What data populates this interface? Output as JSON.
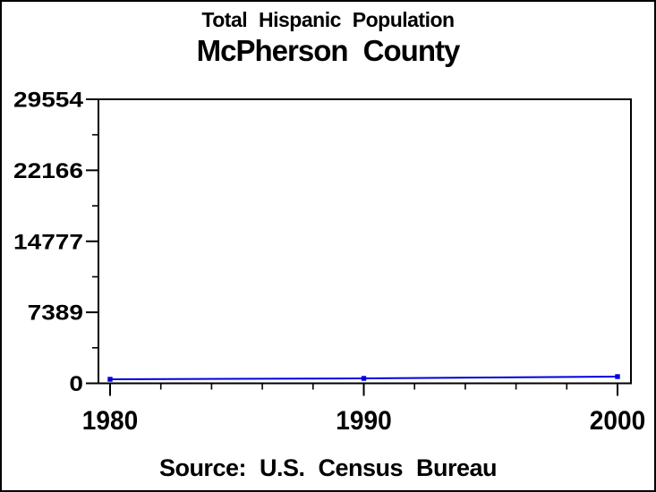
{
  "chart_data": {
    "type": "line",
    "title": "Total Hispanic Population",
    "subtitle": "McPherson County",
    "source_note": "Source: U.S. Census Bureau",
    "series": [
      {
        "name": "Total Hispanic Population",
        "x": [
          1980,
          1990,
          2000
        ],
        "values": [
          420,
          510,
          700
        ]
      }
    ],
    "xlim": [
      1980,
      2000
    ],
    "ylim": [
      0,
      29554
    ],
    "xticks": {
      "values": [
        1980,
        1990,
        2000
      ],
      "labels": [
        "1980",
        "1990",
        "2000"
      ],
      "minor_step_years": 2
    },
    "yticks": {
      "values": [
        0,
        7389,
        14777,
        22166,
        29554
      ],
      "labels": [
        "0",
        "7389",
        "14777",
        "22166",
        "29554"
      ],
      "minor": "midpoints"
    },
    "grid": false,
    "legend": "none",
    "frame": "full-box",
    "background": "#ffffff",
    "axis_color": "#000000",
    "text_color": "#000000",
    "line_color": "#0000dd",
    "marker": "filled-square"
  }
}
